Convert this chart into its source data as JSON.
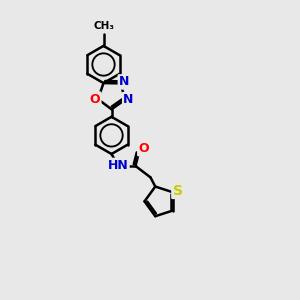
{
  "background_color": "#e8e8e8",
  "bond_color": "#000000",
  "bond_width": 1.8,
  "atom_colors": {
    "N": "#0000cc",
    "O": "#ff0000",
    "S": "#cccc00",
    "C": "#000000"
  },
  "font_size": 9,
  "figsize": [
    3.0,
    3.0
  ],
  "dpi": 100
}
